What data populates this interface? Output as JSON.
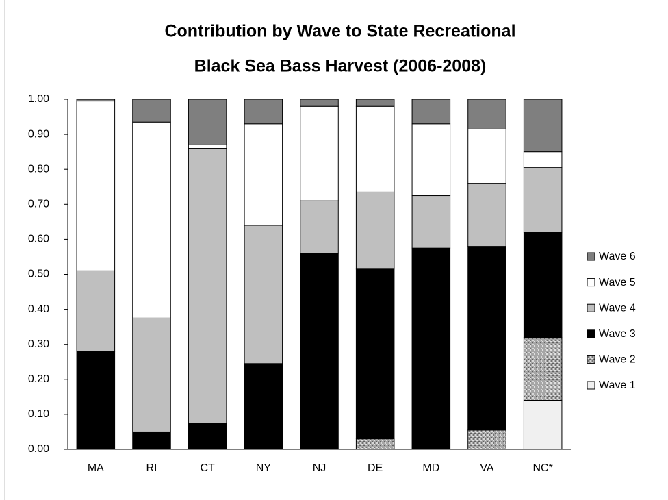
{
  "chart_data": {
    "type": "stacked_bar",
    "title": [
      "Contribution by Wave to State Recreational",
      "Black Sea Bass Harvest (2006-2008)"
    ],
    "categories": [
      "MA",
      "RI",
      "CT",
      "NY",
      "NJ",
      "DE",
      "MD",
      "VA",
      "NC*"
    ],
    "series": [
      {
        "name": "Wave 1",
        "color": "#f0f0f0",
        "values": [
          0,
          0,
          0,
          0,
          0,
          0,
          0,
          0,
          0.14
        ]
      },
      {
        "name": "Wave 2",
        "color": "#a6a6a6",
        "texture": true,
        "values": [
          0,
          0,
          0,
          0,
          0,
          0.03,
          0,
          0.055,
          0.18
        ]
      },
      {
        "name": "Wave 3",
        "color": "#000000",
        "values": [
          0.28,
          0.05,
          0.075,
          0.245,
          0.56,
          0.485,
          0.575,
          0.525,
          0.3
        ]
      },
      {
        "name": "Wave 4",
        "color": "#bfbfbf",
        "values": [
          0.23,
          0.325,
          0.785,
          0.395,
          0.15,
          0.22,
          0.15,
          0.18,
          0.185
        ]
      },
      {
        "name": "Wave 5",
        "color": "#ffffff",
        "values": [
          0.485,
          0.56,
          0.01,
          0.29,
          0.27,
          0.245,
          0.205,
          0.155,
          0.045
        ]
      },
      {
        "name": "Wave 6",
        "color": "#7f7f7f",
        "values": [
          0.005,
          0.065,
          0.13,
          0.07,
          0.02,
          0.02,
          0.07,
          0.085,
          0.15
        ]
      }
    ],
    "ylim": [
      0,
      1
    ],
    "yticks": [
      {
        "value": 0,
        "label": "0.00"
      },
      {
        "value": 0.1,
        "label": "0.10"
      },
      {
        "value": 0.2,
        "label": "0.20"
      },
      {
        "value": 0.3,
        "label": "0.30"
      },
      {
        "value": 0.4,
        "label": "0.40"
      },
      {
        "value": 0.5,
        "label": "0.50"
      },
      {
        "value": 0.6,
        "label": "0.60"
      },
      {
        "value": 0.7,
        "label": "0.70"
      },
      {
        "value": 0.8,
        "label": "0.80"
      },
      {
        "value": 0.9,
        "label": "0.90"
      },
      {
        "value": 1,
        "label": "1.00"
      }
    ],
    "legend": "right"
  }
}
